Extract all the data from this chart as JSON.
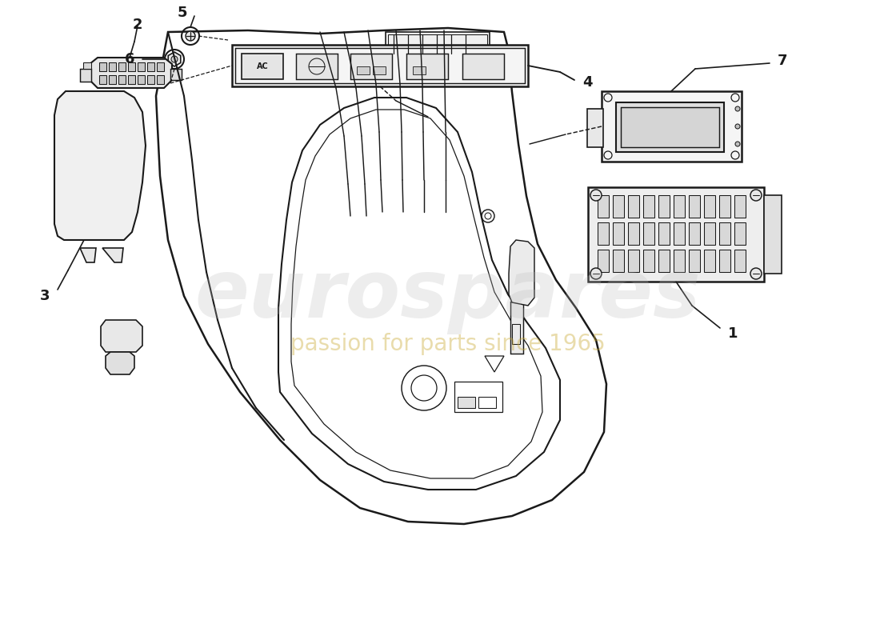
{
  "bg_color": "#ffffff",
  "line_color": "#1a1a1a",
  "label_fontsize": 13,
  "line_width": 1.5,
  "watermark_text": "eurospares",
  "watermark_subtext": "passion for parts since 1965",
  "wm_color": "#bbbbbb",
  "wm_yellow": "#c8a830"
}
